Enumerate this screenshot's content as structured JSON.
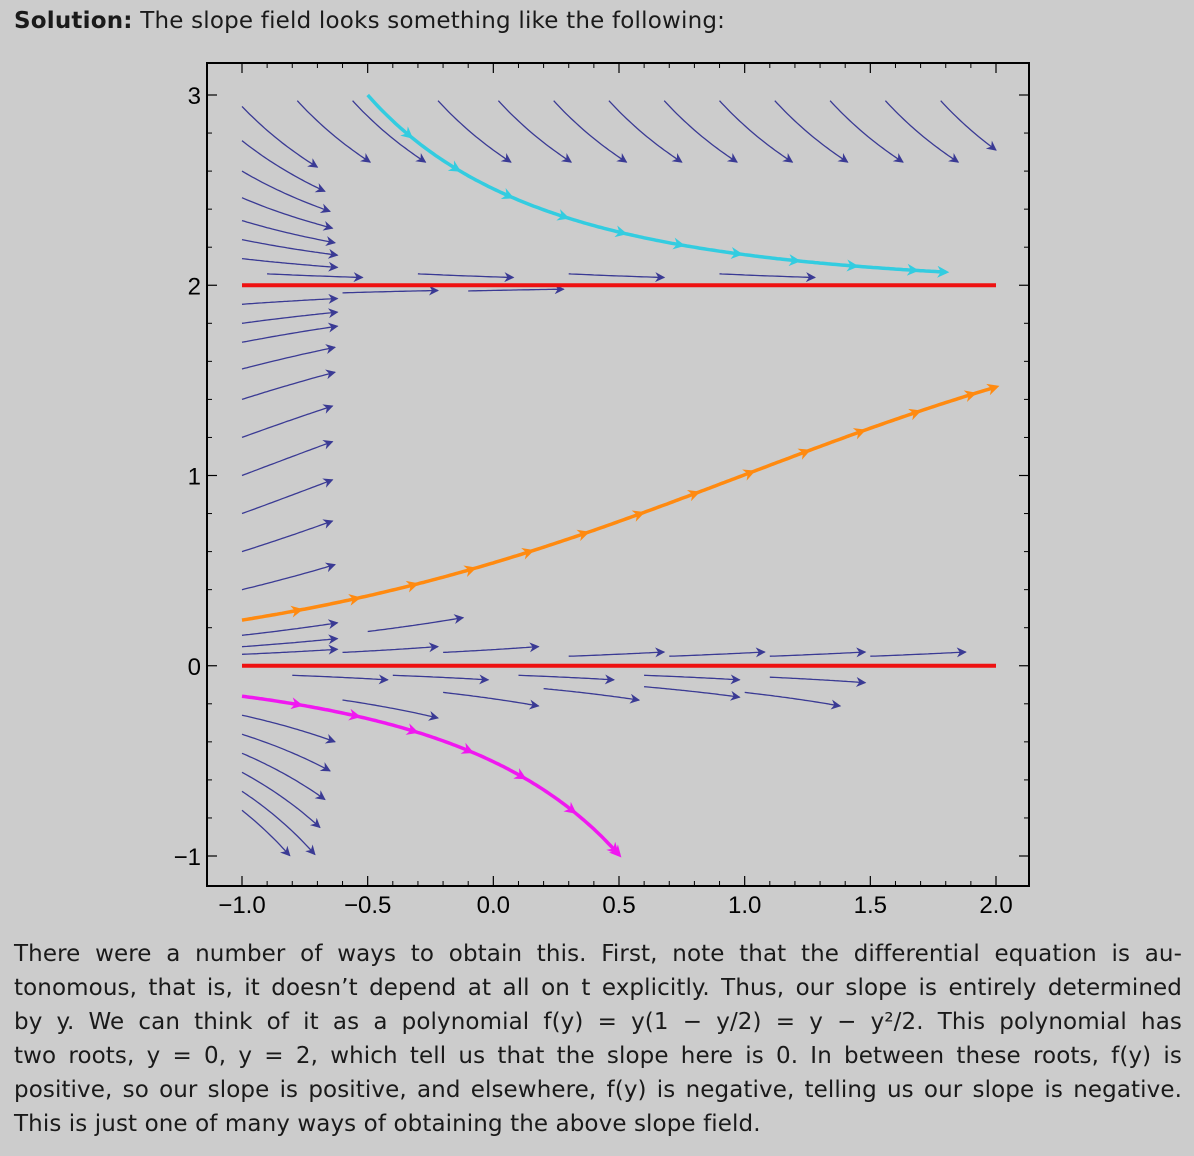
{
  "intro": {
    "label": "Solution:",
    "text": " The slope field looks something like the following:"
  },
  "paragraph_lines": [
    "There were a number of ways to obtain this. First, note that the differential equation is au-",
    "tonomous, that is, it doesn’t depend at all on t explicitly. Thus, our slope is entirely determined",
    "by y. We can think of it as a polynomial f(y) = y(1 − y/2) = y − y²/2. This polynomial has",
    "two roots, y = 0, y = 2, which tell us that the slope here is 0. In between these roots, f(y) is",
    "positive, so our slope is positive, and elsewhere, f(y) is negative, telling us our slope is negative.",
    "This is just one of many ways of obtaining the above slope field."
  ],
  "chart_data": {
    "type": "slope-field",
    "equation_rhs": "y(1 - y/2)",
    "xlim": [
      -1.0,
      2.0
    ],
    "ylim": [
      -1.0,
      3.0
    ],
    "x_ticks": [
      "−1.0",
      "−0.5",
      "0.0",
      "0.5",
      "1.0",
      "1.5",
      "2.0"
    ],
    "x_tick_values": [
      -1.0,
      -0.5,
      0.0,
      0.5,
      1.0,
      1.5,
      2.0
    ],
    "y_ticks": [
      "−1",
      "0",
      "1",
      "2",
      "3"
    ],
    "y_tick_values": [
      -1,
      0,
      1,
      2,
      3
    ],
    "field_color": "#3a3a94",
    "equilibria": [
      {
        "y": 0,
        "color": "#ee1111"
      },
      {
        "y": 2,
        "color": "#ee1111"
      }
    ],
    "solution_curves": [
      {
        "t0": -0.5,
        "y0": 3.0,
        "t_end": 1.8,
        "color": "#33cce0"
      },
      {
        "t0": -1.0,
        "y0": 0.24,
        "t_end": 2.0,
        "color": "#ff8a10"
      },
      {
        "t0": -1.0,
        "y0": -0.16,
        "t_end": 0.52,
        "color": "#f018f0"
      }
    ],
    "streamline_starts": [
      [
        -1.0,
        2.94
      ],
      [
        -0.78,
        2.97
      ],
      [
        -0.56,
        2.97
      ],
      [
        -0.22,
        2.97
      ],
      [
        0.02,
        2.97
      ],
      [
        0.24,
        2.97
      ],
      [
        0.46,
        2.97
      ],
      [
        0.68,
        2.97
      ],
      [
        0.9,
        2.97
      ],
      [
        1.12,
        2.97
      ],
      [
        1.34,
        2.97
      ],
      [
        1.56,
        2.97
      ],
      [
        1.78,
        2.97
      ],
      [
        -1.0,
        2.76
      ],
      [
        -1.0,
        2.6
      ],
      [
        -1.0,
        2.46
      ],
      [
        -1.0,
        2.34
      ],
      [
        -1.0,
        2.24
      ],
      [
        -1.0,
        2.14
      ],
      [
        -0.9,
        2.06
      ],
      [
        -0.3,
        2.06
      ],
      [
        0.3,
        2.06
      ],
      [
        0.9,
        2.06
      ],
      [
        -1.0,
        1.9
      ],
      [
        -0.6,
        1.96
      ],
      [
        -0.1,
        1.97
      ],
      [
        -1.0,
        1.8
      ],
      [
        -1.0,
        1.7
      ],
      [
        -1.0,
        1.56
      ],
      [
        -1.0,
        1.4
      ],
      [
        -1.0,
        1.2
      ],
      [
        -1.0,
        1.0
      ],
      [
        -1.0,
        0.8
      ],
      [
        -1.0,
        0.6
      ],
      [
        -1.0,
        0.4
      ],
      [
        -1.0,
        0.1
      ],
      [
        -1.0,
        0.06
      ],
      [
        -0.6,
        0.07
      ],
      [
        -0.2,
        0.07
      ],
      [
        0.3,
        0.05
      ],
      [
        0.7,
        0.05
      ],
      [
        1.1,
        0.05
      ],
      [
        1.5,
        0.05
      ],
      [
        -1.0,
        0.16
      ],
      [
        -0.5,
        0.18
      ],
      [
        -0.8,
        -0.05
      ],
      [
        -0.4,
        -0.05
      ],
      [
        0.1,
        -0.05
      ],
      [
        0.6,
        -0.05
      ],
      [
        1.1,
        -0.06
      ],
      [
        -1.0,
        -0.26
      ],
      [
        -1.0,
        -0.36
      ],
      [
        -1.0,
        -0.46
      ],
      [
        -1.0,
        -0.56
      ],
      [
        -1.0,
        -0.66
      ],
      [
        -1.0,
        -0.76
      ],
      [
        -0.6,
        -0.18
      ],
      [
        -0.2,
        -0.14
      ],
      [
        0.2,
        -0.12
      ],
      [
        0.6,
        -0.11
      ],
      [
        1.0,
        -0.14
      ]
    ]
  }
}
